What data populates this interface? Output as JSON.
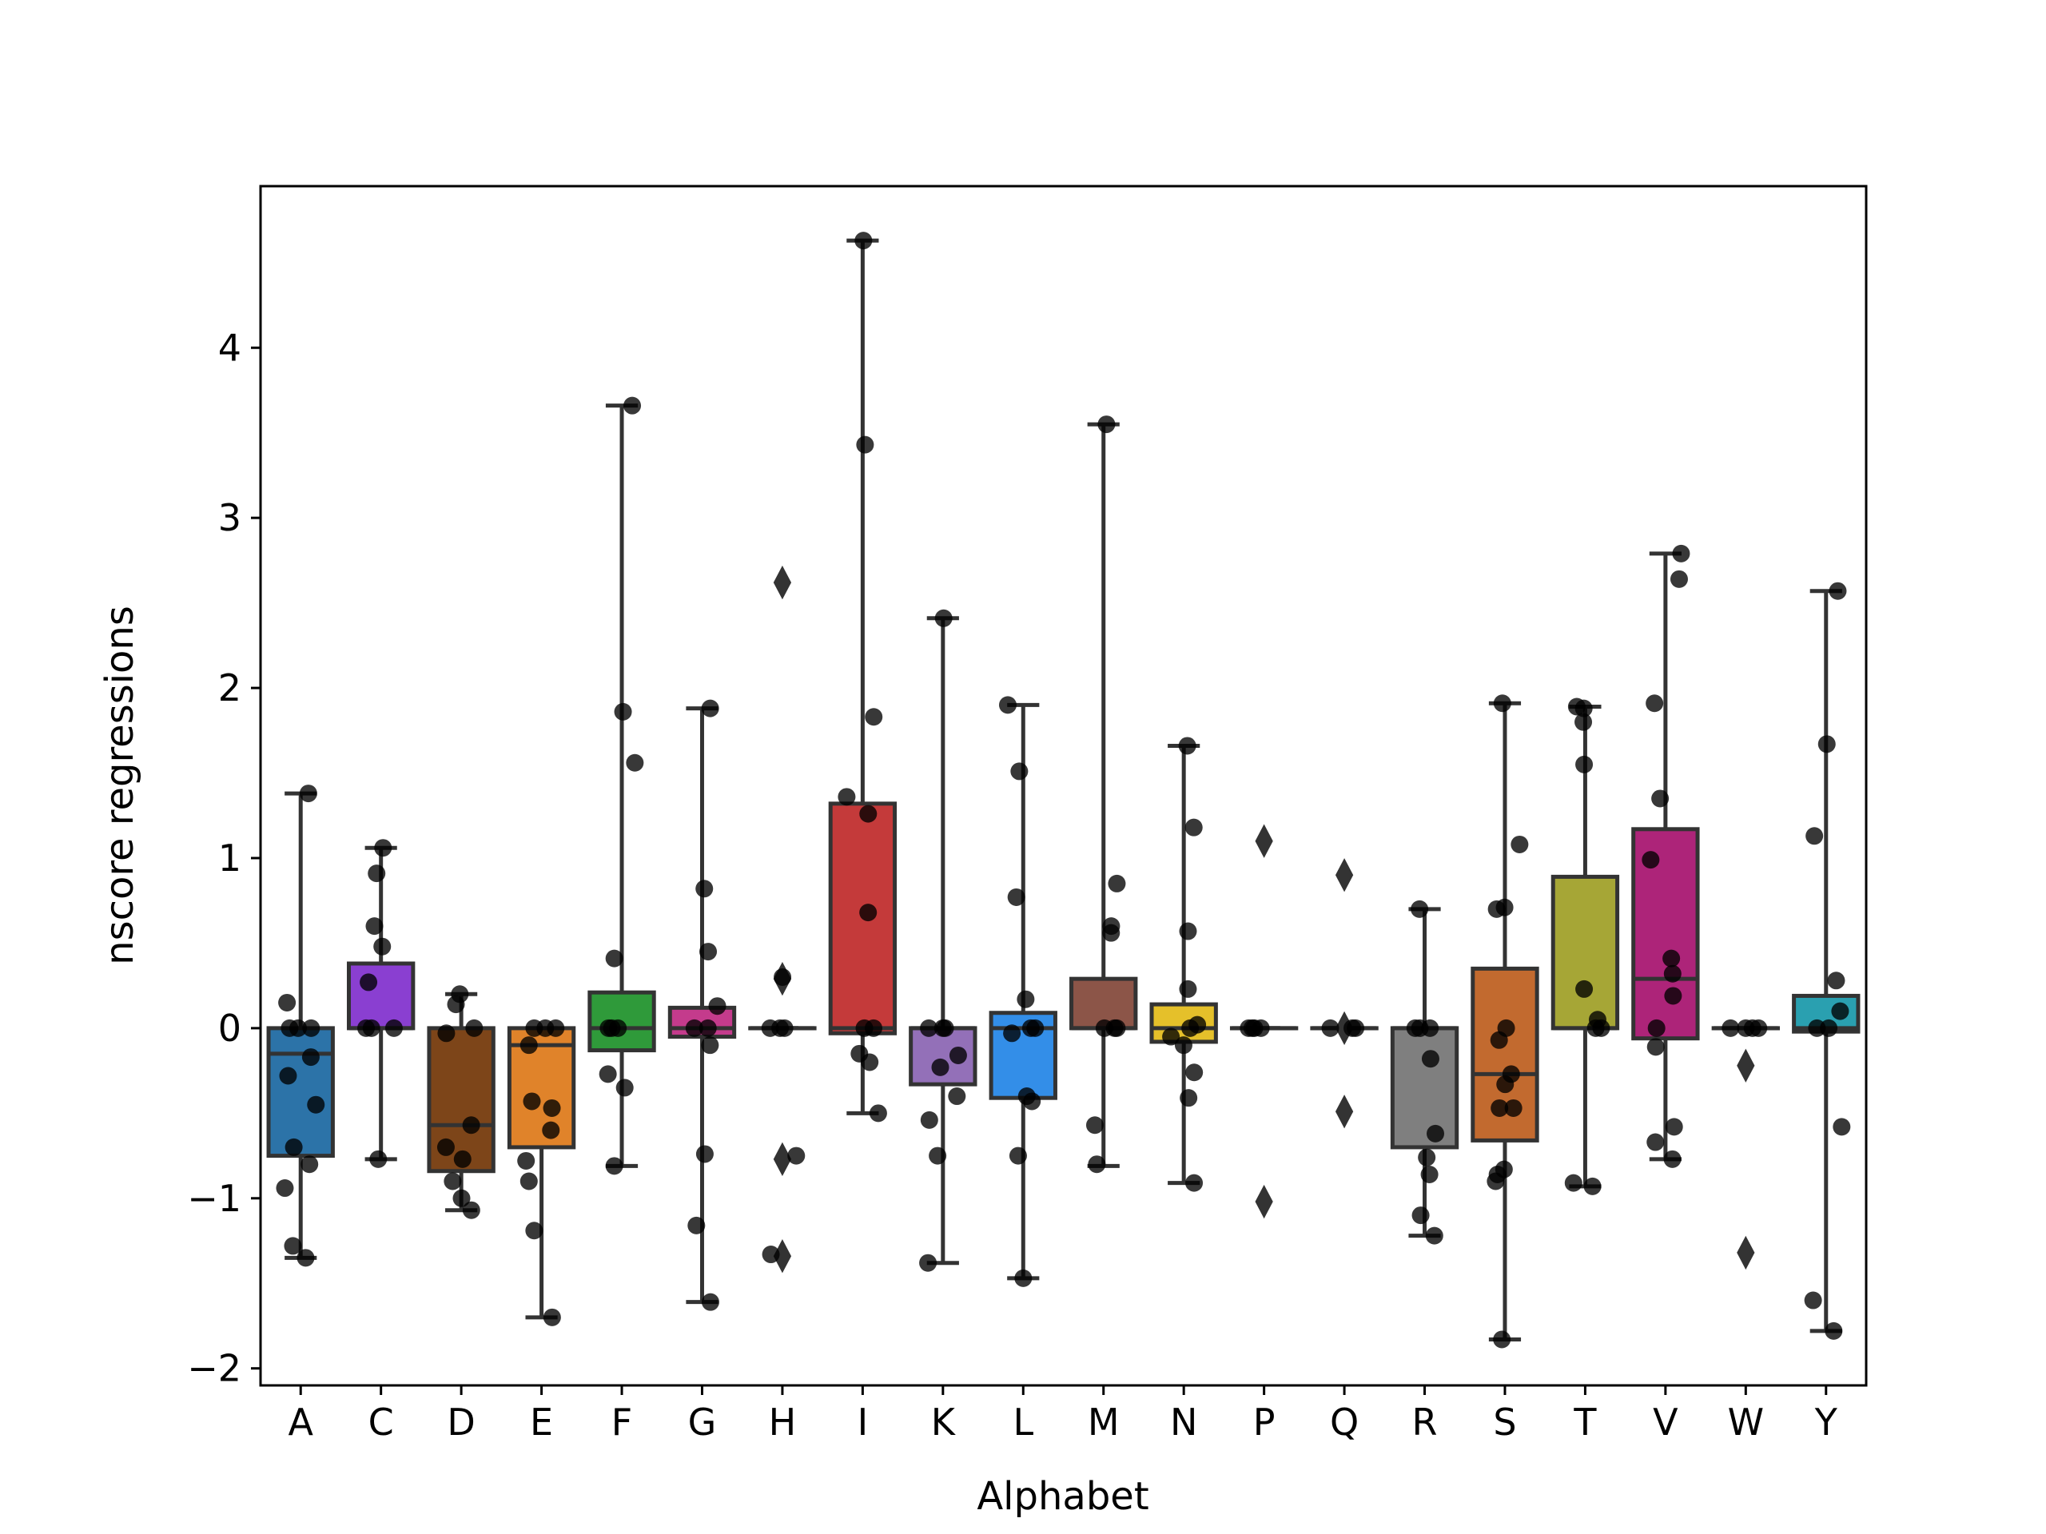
{
  "chart_data": {
    "type": "box",
    "xlabel": "Alphabet",
    "ylabel": "nscore regressions",
    "ylim": [
      -2.1,
      4.95
    ],
    "yticks": [
      -2,
      -1,
      0,
      1,
      2,
      3,
      4
    ],
    "ytick_labels": [
      "−2",
      "−1",
      "0",
      "1",
      "2",
      "3",
      "4"
    ],
    "grid": false,
    "legend": "none",
    "categories": [
      "A",
      "C",
      "D",
      "E",
      "F",
      "G",
      "H",
      "I",
      "K",
      "L",
      "M",
      "N",
      "P",
      "Q",
      "R",
      "S",
      "T",
      "V",
      "W",
      "Y"
    ],
    "boxes": [
      {
        "name": "A",
        "color": "#2c73a8",
        "q1": -0.75,
        "median": -0.15,
        "q3": 0.0,
        "whisker_low": -1.35,
        "whisker_high": 1.38,
        "outliers": [],
        "points": [
          1.38,
          0.15,
          0.0,
          0.0,
          0.0,
          -0.17,
          -0.28,
          -0.45,
          -0.7,
          -0.8,
          -0.94,
          -1.28,
          -1.35
        ]
      },
      {
        "name": "C",
        "color": "#8a3fd1",
        "q1": 0.0,
        "median": 0.0,
        "q3": 0.38,
        "whisker_low": -0.77,
        "whisker_high": 1.06,
        "outliers": [],
        "points": [
          1.06,
          0.91,
          0.6,
          0.48,
          0.27,
          0.0,
          0.0,
          0.0,
          -0.77
        ]
      },
      {
        "name": "D",
        "color": "#7d4519",
        "q1": -0.84,
        "median": -0.57,
        "q3": 0.0,
        "whisker_low": -1.07,
        "whisker_high": 0.2,
        "outliers": [],
        "points": [
          0.2,
          0.14,
          0.0,
          -0.03,
          -0.57,
          -0.7,
          -0.77,
          -0.9,
          -1.0,
          -1.07
        ]
      },
      {
        "name": "E",
        "color": "#e0832a",
        "q1": -0.7,
        "median": -0.1,
        "q3": 0.0,
        "whisker_low": -1.7,
        "whisker_high": 0.0,
        "outliers": [],
        "points": [
          0.0,
          0.0,
          0.0,
          -0.1,
          -0.43,
          -0.47,
          -0.6,
          -0.78,
          -0.9,
          -1.19,
          -1.7
        ]
      },
      {
        "name": "F",
        "color": "#2f9a3a",
        "q1": -0.13,
        "median": 0.0,
        "q3": 0.21,
        "whisker_low": -0.81,
        "whisker_high": 3.66,
        "outliers": [],
        "points": [
          3.66,
          1.86,
          1.56,
          0.41,
          0.0,
          0.0,
          0.0,
          -0.27,
          -0.35,
          -0.81
        ]
      },
      {
        "name": "G",
        "color": "#c43b8c",
        "q1": -0.05,
        "median": 0.0,
        "q3": 0.12,
        "whisker_low": -1.61,
        "whisker_high": 1.88,
        "outliers": [],
        "points": [
          1.88,
          0.82,
          0.45,
          0.13,
          0.0,
          0.0,
          -0.1,
          -0.74,
          -1.16,
          -1.61
        ]
      },
      {
        "name": "H",
        "color": "#8c8c8c",
        "q1": 0.0,
        "median": 0.0,
        "q3": 0.0,
        "whisker_low": 0.0,
        "whisker_high": 0.0,
        "outliers": [
          2.62,
          0.29,
          -0.77,
          -1.34
        ],
        "points": [
          0.3,
          0.0,
          0.0,
          0.0,
          -0.75,
          -1.33
        ]
      },
      {
        "name": "I",
        "color": "#c43a3a",
        "q1": -0.03,
        "median": 0.0,
        "q3": 1.32,
        "whisker_low": -0.5,
        "whisker_high": 4.63,
        "outliers": [],
        "points": [
          4.63,
          3.43,
          1.83,
          1.36,
          1.26,
          0.68,
          0.0,
          0.0,
          -0.15,
          -0.2,
          -0.5
        ]
      },
      {
        "name": "K",
        "color": "#9370b8",
        "q1": -0.33,
        "median": 0.0,
        "q3": 0.0,
        "whisker_low": -1.38,
        "whisker_high": 2.41,
        "outliers": [],
        "points": [
          2.41,
          0.0,
          0.0,
          0.0,
          -0.16,
          -0.23,
          -0.4,
          -0.54,
          -0.75,
          -1.38
        ]
      },
      {
        "name": "L",
        "color": "#338ee8",
        "q1": -0.41,
        "median": 0.0,
        "q3": 0.09,
        "whisker_low": -1.47,
        "whisker_high": 1.9,
        "outliers": [],
        "points": [
          1.9,
          1.51,
          0.77,
          0.17,
          0.0,
          0.0,
          -0.03,
          -0.4,
          -0.43,
          -0.75,
          -1.47
        ]
      },
      {
        "name": "M",
        "color": "#8c5548",
        "q1": 0.0,
        "median": 0.0,
        "q3": 0.29,
        "whisker_low": -0.81,
        "whisker_high": 3.55,
        "outliers": [],
        "points": [
          3.55,
          0.85,
          0.6,
          0.56,
          0.0,
          0.0,
          0.0,
          -0.57,
          -0.8
        ]
      },
      {
        "name": "N",
        "color": "#e5c02a",
        "q1": -0.08,
        "median": 0.0,
        "q3": 0.14,
        "whisker_low": -0.91,
        "whisker_high": 1.66,
        "outliers": [],
        "points": [
          1.66,
          1.18,
          0.57,
          0.23,
          0.02,
          0.0,
          -0.05,
          -0.1,
          -0.26,
          -0.41,
          -0.91
        ]
      },
      {
        "name": "P",
        "color": "#888888",
        "q1": 0.0,
        "median": 0.0,
        "q3": 0.0,
        "whisker_low": 0.0,
        "whisker_high": 0.0,
        "outliers": [
          1.1,
          -1.02
        ],
        "points": [
          0.0,
          0.0,
          0.0,
          0.0
        ]
      },
      {
        "name": "Q",
        "color": "#888888",
        "q1": 0.0,
        "median": 0.0,
        "q3": 0.0,
        "whisker_low": 0.0,
        "whisker_high": 0.0,
        "outliers": [
          0.9,
          0.0,
          -0.49
        ],
        "points": [
          0.0,
          0.0,
          0.0
        ]
      },
      {
        "name": "R",
        "color": "#7f7f7f",
        "q1": -0.7,
        "median": 0.0,
        "q3": 0.0,
        "whisker_low": -1.22,
        "whisker_high": 0.7,
        "outliers": [],
        "points": [
          0.7,
          0.0,
          0.0,
          0.0,
          -0.18,
          -0.62,
          -0.76,
          -0.86,
          -1.1,
          -1.22
        ]
      },
      {
        "name": "S",
        "color": "#c26a2f",
        "q1": -0.66,
        "median": -0.27,
        "q3": 0.35,
        "whisker_low": -1.83,
        "whisker_high": 1.91,
        "outliers": [],
        "points": [
          1.91,
          1.08,
          0.71,
          0.7,
          0.0,
          -0.07,
          -0.27,
          -0.33,
          -0.47,
          -0.47,
          -0.83,
          -0.86,
          -0.9,
          -1.83
        ]
      },
      {
        "name": "T",
        "color": "#a6a636",
        "q1": 0.0,
        "median": 0.0,
        "q3": 0.89,
        "whisker_low": -0.93,
        "whisker_high": 1.89,
        "outliers": [],
        "points": [
          1.89,
          1.88,
          1.8,
          1.55,
          0.23,
          0.05,
          0.0,
          0.0,
          -0.91,
          -0.93
        ]
      },
      {
        "name": "V",
        "color": "#ad2479",
        "q1": -0.06,
        "median": 0.29,
        "q3": 1.17,
        "whisker_low": -0.77,
        "whisker_high": 2.79,
        "outliers": [],
        "points": [
          2.79,
          2.64,
          1.91,
          1.35,
          0.99,
          0.41,
          0.32,
          0.19,
          0.0,
          -0.11,
          -0.58,
          -0.67,
          -0.77
        ]
      },
      {
        "name": "W",
        "color": "#888888",
        "q1": 0.0,
        "median": 0.0,
        "q3": 0.0,
        "whisker_low": 0.0,
        "whisker_high": 0.0,
        "outliers": [
          -0.22,
          -1.32
        ],
        "points": [
          0.0,
          0.0,
          0.0,
          0.0
        ]
      },
      {
        "name": "Y",
        "color": "#2aa0b0",
        "q1": -0.02,
        "median": 0.0,
        "q3": 0.19,
        "whisker_low": -1.78,
        "whisker_high": 2.57,
        "outliers": [],
        "points": [
          2.57,
          1.67,
          1.13,
          0.28,
          0.1,
          0.0,
          0.0,
          -0.58,
          -1.6,
          -1.78
        ]
      }
    ]
  }
}
